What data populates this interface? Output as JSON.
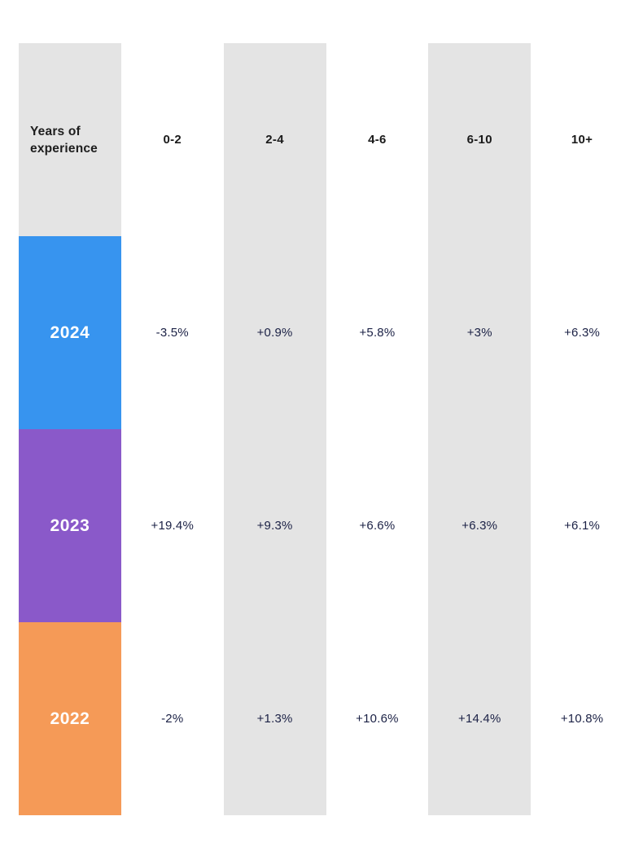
{
  "colors": {
    "band_gray": "#e4e4e4",
    "row_2024_blue": "#3794ef",
    "row_2023_purple": "#8a59c9",
    "row_2022_orange": "#f59a57",
    "header_text": "#1e1e1e",
    "value_text": "#1b2145",
    "year_label_text": "#ffffff"
  },
  "chart_data": {
    "type": "table",
    "corner_label": "Years of experience",
    "columns": [
      "0-2",
      "2-4",
      "4-6",
      "6-10",
      "10+"
    ],
    "rows": [
      {
        "label": "2024",
        "color": "#3794ef",
        "values": [
          "-3.5%",
          "+0.9%",
          "+5.8%",
          "+3%",
          "+6.3%"
        ]
      },
      {
        "label": "2023",
        "color": "#8a59c9",
        "values": [
          "+19.4%",
          "+9.3%",
          "+6.6%",
          "+6.3%",
          "+6.1%"
        ]
      },
      {
        "label": "2022",
        "color": "#f59a57",
        "values": [
          "-2%",
          "+1.3%",
          "+10.6%",
          "+14.4%",
          "+10.8%"
        ]
      }
    ],
    "layout_hints": {
      "striped_columns": [
        "corner",
        "2-4",
        "6-10"
      ],
      "grid": "off",
      "legend": "none"
    }
  }
}
